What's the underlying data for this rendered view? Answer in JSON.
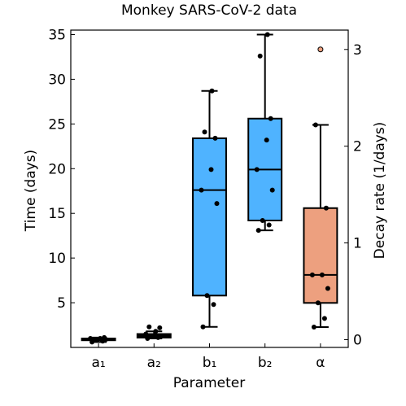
{
  "chart_data": {
    "type": "boxplot",
    "title": "Monkey SARS-CoV-2 data",
    "xlabel": "Parameter",
    "ylabel_left": "Time (days)",
    "ylabel_right": "Decay rate (1/days)",
    "categories": [
      "a₁",
      "a₂",
      "b₁",
      "b₂",
      "α"
    ],
    "left_axis": {
      "ylim": [
        0,
        35.5
      ],
      "ticks": [
        5,
        10,
        15,
        20,
        25,
        30,
        35
      ],
      "tick_labels": [
        "5",
        "10",
        "15",
        "20",
        "25",
        "30",
        "35"
      ]
    },
    "right_axis": {
      "ylim": [
        -0.08,
        3.2
      ],
      "ticks": [
        0,
        1,
        2,
        3
      ],
      "tick_labels": [
        "0",
        "1",
        "2",
        "3"
      ]
    },
    "boxes": [
      {
        "category": "a₁",
        "axis": "left",
        "color": "#000000",
        "min": 0.6,
        "q1": 0.8,
        "median": 0.9,
        "q3": 1.0,
        "max": 1.1,
        "points": [
          0.6,
          0.7,
          0.8,
          0.9,
          1.0,
          1.0,
          1.1
        ]
      },
      {
        "category": "a₂",
        "axis": "left",
        "color": "#000000",
        "min": 1.0,
        "q1": 1.1,
        "median": 1.3,
        "q3": 1.5,
        "max": 1.8,
        "points": [
          1.0,
          1.1,
          1.2,
          1.3,
          1.5,
          1.8,
          2.2,
          2.3
        ]
      },
      {
        "category": "b₁",
        "axis": "left",
        "color": "#4fb3ff",
        "min": 2.3,
        "q1": 5.8,
        "median": 17.6,
        "q3": 23.4,
        "max": 28.7,
        "points": [
          2.3,
          4.8,
          5.8,
          16.1,
          17.6,
          19.9,
          23.4,
          24.1,
          28.7
        ]
      },
      {
        "category": "b₂",
        "axis": "left",
        "color": "#4fb3ff",
        "min": 13.1,
        "q1": 14.2,
        "median": 19.9,
        "q3": 25.6,
        "max": 35.0,
        "points": [
          13.1,
          13.7,
          14.2,
          17.6,
          19.9,
          23.2,
          25.6,
          32.6,
          35.0
        ]
      },
      {
        "category": "α",
        "axis": "right",
        "color": "#eda07f",
        "min": 0.13,
        "q1": 0.38,
        "median": 0.67,
        "q3": 1.36,
        "max": 2.22,
        "points": [
          0.13,
          0.22,
          0.38,
          0.53,
          0.67,
          0.67,
          1.36,
          2.22,
          3.0
        ],
        "outliers": [
          3.0
        ]
      }
    ]
  }
}
